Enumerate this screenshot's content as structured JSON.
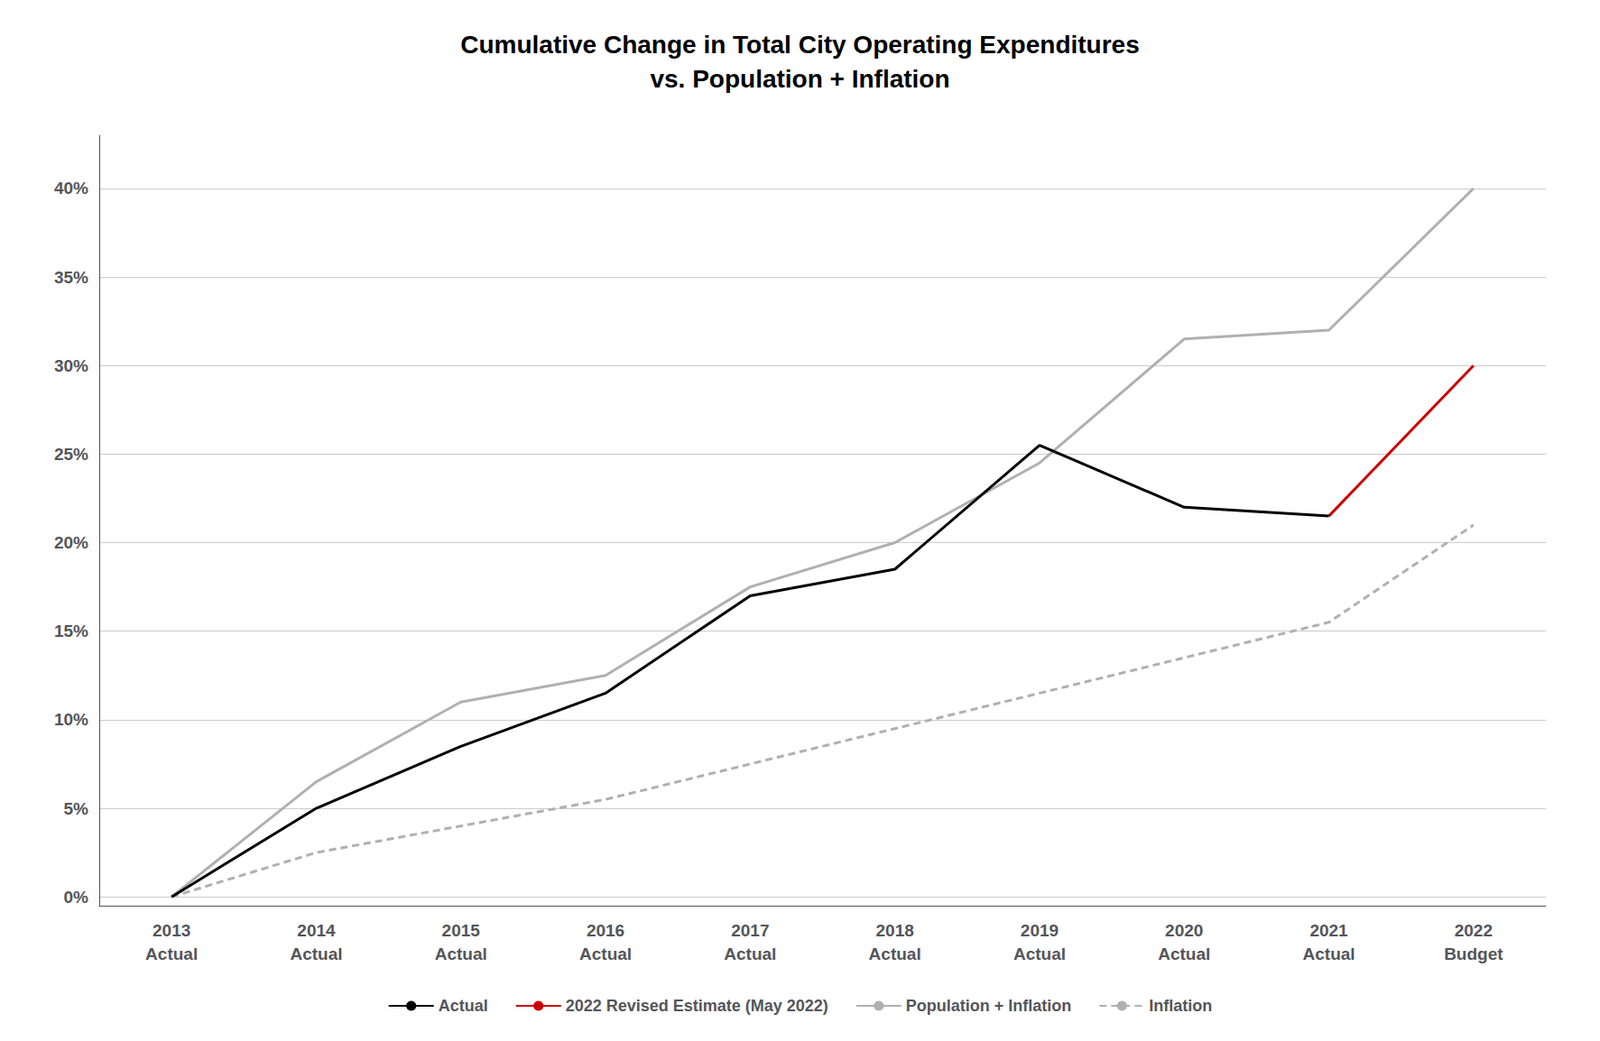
{
  "chart_data": {
    "type": "line",
    "title": "Cumulative Change in Total City Operating Expenditures\nvs. Population + Inflation",
    "categories": [
      "2013\nActual",
      "2014\nActual",
      "2015\nActual",
      "2016\nActual",
      "2017\nActual",
      "2018\nActual",
      "2019\nActual",
      "2020\nActual",
      "2021\nActual",
      "2022\nBudget"
    ],
    "series": [
      {
        "name": "Actual",
        "color": "#000000",
        "line_style": "solid",
        "values": [
          0.0,
          0.05,
          0.085,
          0.115,
          0.17,
          0.185,
          0.255,
          0.22,
          0.215,
          null
        ]
      },
      {
        "name": "2022 Revised Estimate (May 2022)",
        "color": "#cc0000",
        "line_style": "solid",
        "values": [
          null,
          null,
          null,
          null,
          null,
          null,
          null,
          null,
          0.215,
          0.3
        ]
      },
      {
        "name": "Population + Inflation",
        "color": "#b0b0b0",
        "line_style": "solid",
        "values": [
          0.0,
          0.065,
          0.11,
          0.125,
          0.175,
          0.2,
          0.245,
          0.315,
          0.32,
          0.4
        ]
      },
      {
        "name": "Inflation",
        "color": "#b0b0b0",
        "line_style": "dashed",
        "values": [
          0.0,
          0.025,
          0.04,
          0.055,
          0.075,
          0.095,
          0.115,
          0.135,
          0.155,
          0.21
        ]
      }
    ],
    "ylim": [
      -0.005,
      0.43
    ],
    "yticks": [
      {
        "value": 0.0,
        "label": "0%"
      },
      {
        "value": 0.05,
        "label": "5%"
      },
      {
        "value": 0.1,
        "label": "10%"
      },
      {
        "value": 0.15,
        "label": "15%"
      },
      {
        "value": 0.2,
        "label": "20%"
      },
      {
        "value": 0.25,
        "label": "25%"
      },
      {
        "value": 0.3,
        "label": "30%"
      },
      {
        "value": 0.35,
        "label": "35%"
      },
      {
        "value": 0.4,
        "label": "40%"
      }
    ],
    "grid": true,
    "legend": "bottom"
  }
}
